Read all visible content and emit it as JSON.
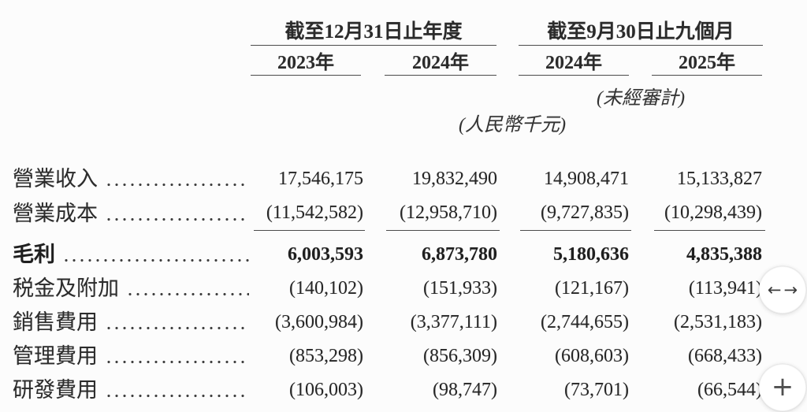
{
  "table": {
    "column_groups": [
      {
        "title": "截至12月31日止年度",
        "years": [
          "2023年",
          "2024年"
        ]
      },
      {
        "title": "截至9月30日止九個月",
        "years": [
          "2024年",
          "2025年"
        ]
      }
    ],
    "notes": {
      "unaudited": "(未經審計)",
      "currency_unit": "(人民幣千元)"
    },
    "rows": [
      {
        "label": "營業收入",
        "values": [
          "17,546,175",
          "19,832,490",
          "14,908,471",
          "15,133,827"
        ]
      },
      {
        "label": "營業成本",
        "values": [
          "(11,542,582)",
          "(12,958,710)",
          "(9,727,835)",
          "(10,298,439)"
        ]
      },
      {
        "label": "毛利",
        "values": [
          "6,003,593",
          "6,873,780",
          "5,180,636",
          "4,835,388"
        ]
      },
      {
        "label": "税金及附加",
        "values": [
          "(140,102)",
          "(151,933)",
          "(121,167)",
          "(113,941)"
        ]
      },
      {
        "label": "銷售費用",
        "values": [
          "(3,600,984)",
          "(3,377,111)",
          "(2,744,655)",
          "(2,531,183)"
        ]
      },
      {
        "label": "管理費用",
        "values": [
          "(853,298)",
          "(856,309)",
          "(608,603)",
          "(668,433)"
        ]
      },
      {
        "label": "研發費用",
        "values": [
          "(106,003)",
          "(98,747)",
          "(73,701)",
          "(66,544)"
        ]
      }
    ]
  },
  "floating_buttons": {
    "pan": {
      "left_arrow": "←",
      "right_arrow": "→"
    },
    "zoom_in": {
      "glyph": "+"
    }
  },
  "colors": {
    "background": "#fcfcfc",
    "text": "#2e2e2e",
    "rule_lines": "#4b4b4b"
  }
}
